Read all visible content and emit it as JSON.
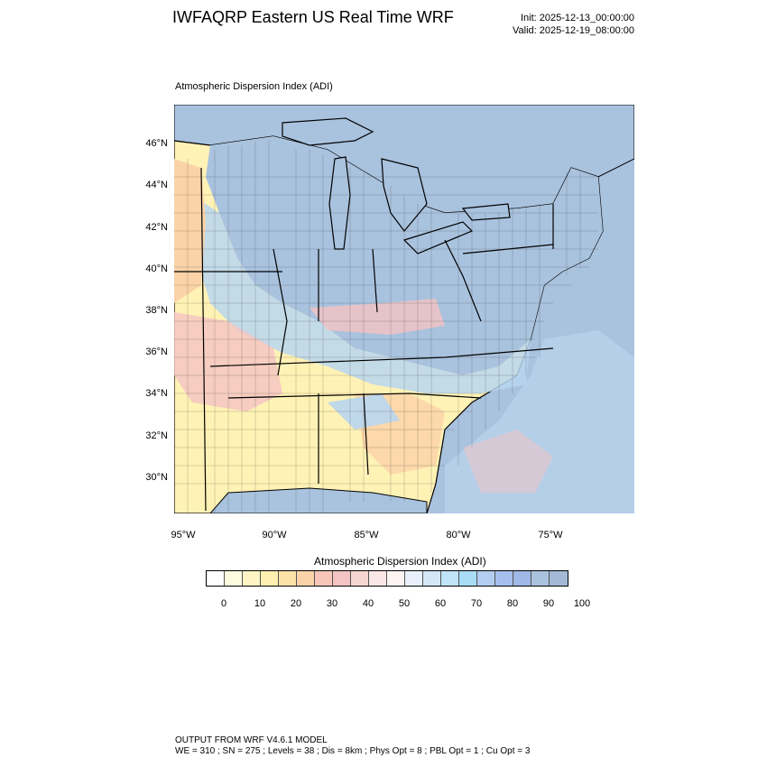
{
  "header": {
    "title": "IWFAQRP Eastern US Real Time WRF",
    "init": "Init: 2025-12-13_00:00:00",
    "valid": "Valid: 2025-12-19_08:00:00"
  },
  "map": {
    "title": "Atmospheric Dispersion Index   (ADI)",
    "lat_labels": [
      "46°N",
      "44°N",
      "42°N",
      "40°N",
      "38°N",
      "36°N",
      "34°N",
      "32°N",
      "30°N"
    ],
    "lon_labels": [
      "95°W",
      "90°W",
      "85°W",
      "80°W",
      "75°W"
    ],
    "colors": {
      "water": "#a9c2de",
      "high_adi": "#a9c2de",
      "mid_blue": "#b9d6f0",
      "low_yellow": "#fff2b5",
      "low_orange": "#fbd3a8",
      "low_pink": "#f4c3c3"
    }
  },
  "legend": {
    "title": "Atmospheric Dispersion Index  (ADI)",
    "tick_labels": [
      "0",
      "10",
      "20",
      "30",
      "40",
      "50",
      "60",
      "70",
      "80",
      "90",
      "100"
    ],
    "swatches": [
      "#ffffff",
      "#fffbe0",
      "#fff5c4",
      "#ffefb0",
      "#fde2a8",
      "#fbd3a8",
      "#f7c6b8",
      "#f4c3c3",
      "#f7d6d2",
      "#fae6e4",
      "#fdf3f3",
      "#e9f0fb",
      "#d4e7f7",
      "#bfe3f7",
      "#a9dcf5",
      "#b3cdf0",
      "#a6c0ee",
      "#9fb8e6",
      "#a9c2de",
      "#a3b9d6"
    ]
  },
  "footer": {
    "line1": "OUTPUT FROM WRF V4.6.1 MODEL",
    "line2": "WE = 310 ; SN = 275 ; Levels = 38 ; Dis = 8km ; Phys Opt = 8 ; PBL Opt = 1 ; Cu Opt = 3"
  }
}
